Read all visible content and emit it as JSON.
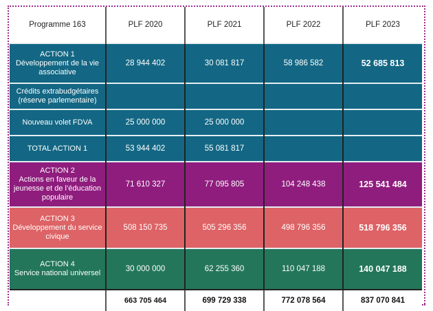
{
  "headers": [
    "Programme 163",
    "PLF 2020",
    "PLF 2021",
    "PLF 2022",
    "PLF 2023"
  ],
  "rows": [
    {
      "label": [
        "ACTION 1",
        "Développement de la vie",
        "associative"
      ],
      "values": [
        "28 944 402",
        "30 081 817",
        "58 986 582",
        "52 685 813"
      ]
    },
    {
      "label": [
        "Crédits extrabudgétaires",
        "(réserve parlementaire)"
      ],
      "values": [
        "",
        "",
        "",
        ""
      ]
    },
    {
      "label": [
        "Nouveau volet FDVA"
      ],
      "values": [
        "25 000 000",
        "25 000 000",
        "",
        ""
      ]
    },
    {
      "label": [
        "TOTAL ACTION 1"
      ],
      "values": [
        "53 944 402",
        "55 081 817",
        "",
        ""
      ]
    },
    {
      "label": [
        "ACTION 2",
        "Actions en faveur de la",
        "jeunesse et de l’éducation",
        "populaire"
      ],
      "values": [
        "71 610 327",
        "77 095 805",
        "104 248 438",
        "125 541 484"
      ]
    },
    {
      "label": [
        "ACTION 3",
        "Développement du service",
        "civique"
      ],
      "values": [
        "508 150 735",
        "505 296 356",
        "498 796 356",
        "518 796 356"
      ]
    },
    {
      "label": [
        "ACTION 4",
        "Service national universel"
      ],
      "values": [
        "30 000 000",
        "62 255 360",
        "110 047 188",
        "140 047 188"
      ]
    }
  ],
  "totals": [
    "663 705 464",
    "699 729 338",
    "772 078 564",
    "837 070 841"
  ],
  "colors": {
    "action1": "#136784",
    "action2": "#8f1d7e",
    "action3": "#dd6366",
    "action4": "#23765a"
  }
}
